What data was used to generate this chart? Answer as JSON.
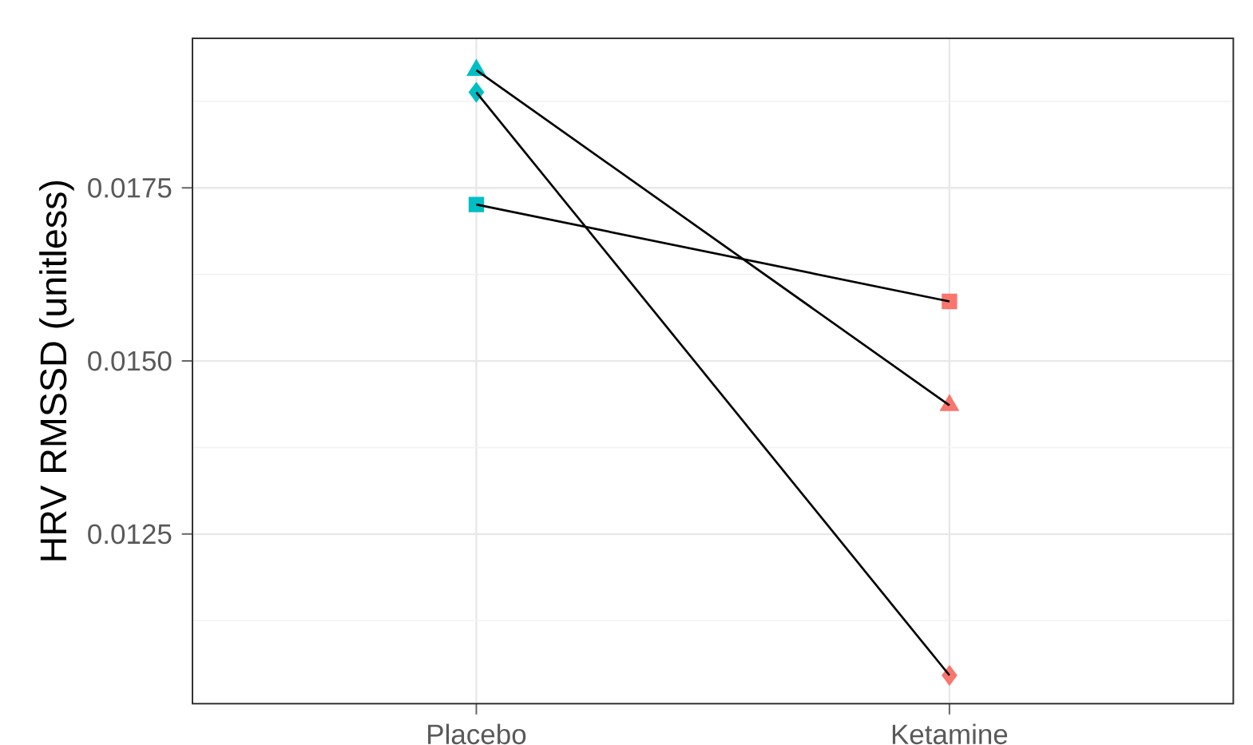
{
  "chart_data": {
    "type": "line",
    "ylabel": "HRV RMSSD (unitless)",
    "categories": [
      "Placebo",
      "Ketamine"
    ],
    "series": [
      {
        "color": "#000000",
        "colors": [
          "#00bfc4",
          "#f8766d"
        ],
        "marker": "triangle",
        "values": [
          0.0192,
          0.01436
        ]
      },
      {
        "color": "#000000",
        "colors": [
          "#00bfc4",
          "#f8766d"
        ],
        "marker": "diamond",
        "values": [
          0.01888,
          0.01046
        ]
      },
      {
        "color": "#000000",
        "colors": [
          "#00bfc4",
          "#f8766d"
        ],
        "marker": "square",
        "values": [
          0.01726,
          0.01586
        ]
      }
    ],
    "ylim": [
      0.01005,
      0.01966
    ],
    "yticks": [
      {
        "value": 0.01125,
        "label": null
      },
      {
        "value": 0.0125,
        "label": "0.0125"
      },
      {
        "value": 0.01375,
        "label": null
      },
      {
        "value": 0.015,
        "label": "0.0150"
      },
      {
        "value": 0.01625,
        "label": null
      },
      {
        "value": 0.0175,
        "label": "0.0175"
      },
      {
        "value": 0.01875,
        "label": null
      }
    ],
    "grid": true,
    "line_style": "solid"
  }
}
